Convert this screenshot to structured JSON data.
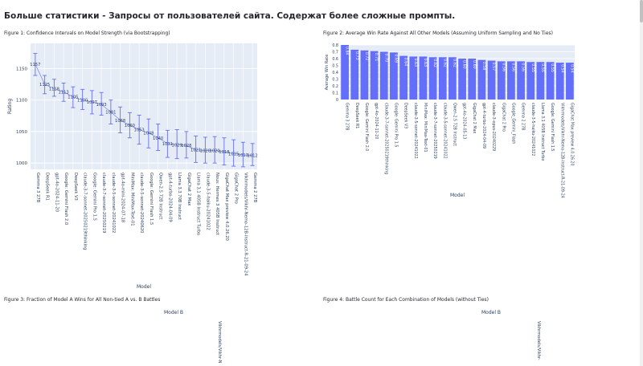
{
  "page": {
    "title": "Больше статистики - Запросы от пользователей сайта. Содержат более сложные промпты."
  },
  "figures": [
    {
      "title": "Figure 1: Confidence Intervals on Model Strength (via Bootstrapping)"
    },
    {
      "title": "Figure 2: Average Win Rate Against All Other Models (Assuming Uniform Sampling and No Ties)"
    },
    {
      "title": "Figure 3: Fraction of Model A Wins for All Non-tied A vs. B Battles"
    },
    {
      "title": "Figure 4: Battle Count for Each Combination of Models (without Ties)"
    }
  ],
  "colors": {
    "plot_bg": "#e5ecf6",
    "accent": "#636efa",
    "grid": "#ffffff",
    "text": "#2a3f5f"
  },
  "chart_data": [
    {
      "type": "scatter",
      "title": "",
      "xlabel": "Model",
      "ylabel": "Rating",
      "ylim": [
        990,
        1190
      ],
      "yticks": [
        1000,
        1050,
        1100,
        1150
      ],
      "grid": true,
      "categories": [
        "Gemma 3 27B",
        "DeepSeek R1",
        "gpt-4o-2024-11-20",
        "Google: Gemini Flash 2.0",
        "DeepSeek V3",
        "claude-3-7-sonnet-20250219thinking",
        "Google: Gemini Pro 1.5",
        "claude-3-7-sonnet-20250219",
        "claude-3-5-sonnet-20241022",
        "gpt-4o-mini-2024-07-18",
        "MiniMax: MiniMax-Text-01",
        "claude-3-5-sonnet-20240620",
        "Google: Gemini Flash 1.5",
        "Qwen-2.5 72B Instruct",
        "gpt-4-turbo-2024-04-09",
        "Llama 3.3 70B Instruct",
        "GigaChat 2 Max",
        "Llama 3.1 405B Instruct Turbo",
        "claude-3-5-haiku-20241022",
        "Nous: Hermes 3 405B Instruct",
        "GigaChat Max preview 4.0.26.20",
        "GigaChat 2 Pro",
        "Vikhrmodels/Vikhr-Nemo-12B-Instruct-R-21-09-24",
        "Gemma 2 27B"
      ],
      "series": [
        {
          "values": [
            1157,
            1125,
            1118,
            1113,
            1105,
            1100,
            1097,
            1093,
            1081,
            1068,
            1060,
            1053,
            1048,
            1040,
            1031,
            1029,
            1028,
            1021,
            1020,
            1020,
            1018,
            1015,
            1013,
            1012
          ],
          "lower": [
            1139,
            1110,
            1106,
            1098,
            1088,
            1085,
            1078,
            1076,
            1062,
            1048,
            1040,
            1030,
            1024,
            1020,
            1009,
            1007,
            1008,
            1001,
            1000,
            1000,
            997,
            995,
            994,
            996
          ],
          "upper": [
            1174,
            1139,
            1133,
            1127,
            1121,
            1117,
            1115,
            1112,
            1100,
            1089,
            1080,
            1076,
            1070,
            1062,
            1052,
            1053,
            1050,
            1043,
            1041,
            1042,
            1040,
            1037,
            1033,
            1031
          ],
          "labels": [
            "1157",
            "1125",
            "1118",
            "1113",
            "1105",
            "1100",
            "1097",
            "1093",
            "1081",
            "1068",
            "1060",
            "1053",
            "1048",
            "1040",
            "1031",
            "1029",
            "1028",
            "1021",
            "1020",
            "1020",
            "1018",
            "1015",
            "1013",
            "1012"
          ]
        }
      ]
    },
    {
      "type": "bar",
      "title": "",
      "xlabel": "Model",
      "ylabel": "Average Win Rate",
      "ylim": [
        0,
        0.8
      ],
      "yticks": [
        0,
        0.1,
        0.2,
        0.3,
        0.4,
        0.5,
        0.6,
        0.7,
        0.8
      ],
      "grid": true,
      "categories": [
        "Gemma 3 27B",
        "DeepSeek R1",
        "Google: Gemini Flash 2.0",
        "gpt-4o-2024-11-20",
        "claude-3-7-sonnet-20250219thinking",
        "Google: Gemini Pro 1.5",
        "DeepSeek V3",
        "claude-3-5-sonnet-20241022",
        "MiniMax: MiniMax-Text-01",
        "claude-3-7-sonnet-20250219",
        "claude-3-5-sonnet-20241022",
        "Qwen-2.5 72B Instruct",
        "gpt-4o-2024-05-13",
        "GigaChat 2 Max",
        "gpt-4-turbo-2024-04-09",
        "claude-3-opus-20240229",
        "GigaChat 2 Pro",
        "Google_Gemini_Flash",
        "Gemma 2 27B",
        "claude-3-5-haiku-20241022",
        "Llama 3.1 405B Instruct Turbo",
        "Google: Gemini Flash 1.5",
        "Vikhrmodels/Vikhr-Nemo-12B-Instruct-R-21-09-24",
        "GigaChat Max preview 4.0.26.20"
      ],
      "values": [
        0.84,
        0.73,
        0.72,
        0.71,
        0.7,
        0.69,
        0.64,
        0.63,
        0.63,
        0.62,
        0.62,
        0.62,
        0.6,
        0.6,
        0.58,
        0.57,
        0.56,
        0.56,
        0.56,
        0.55,
        0.55,
        0.55,
        0.54,
        0.54
      ],
      "labels": [
        "0.84",
        "0.73",
        "0.72",
        "0.71",
        "0.70",
        "0.69",
        "0.64",
        "0.63",
        "0.63",
        "0.62",
        "0.62",
        "0.62",
        "0.60",
        "0.60",
        "0.58",
        "0.57",
        "0.56",
        "0.56",
        "0.56",
        "0.55",
        "0.55",
        "0.55",
        "0.54",
        "0.54"
      ]
    },
    {
      "type": "heatmap",
      "title": "",
      "xlabel": "Model B",
      "ylabel": "",
      "categories": [
        "Vikhrmodels/Vikhr-N"
      ]
    },
    {
      "type": "heatmap",
      "title": "",
      "xlabel": "Model B",
      "ylabel": "",
      "categories": [
        "Vikhrmodels/Vikhr-"
      ]
    }
  ]
}
